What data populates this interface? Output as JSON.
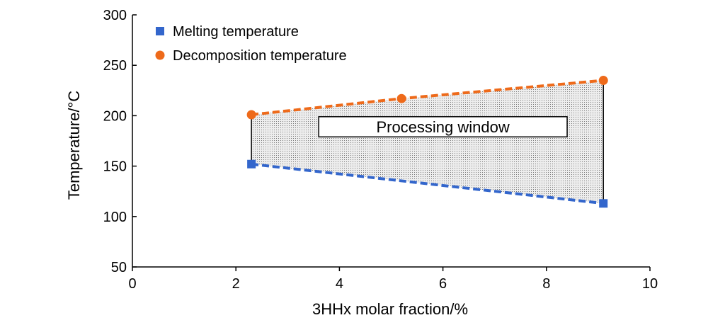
{
  "chart_data": {
    "type": "line",
    "xlabel": "3HHx molar fraction/%",
    "ylabel": "Temperature/°C",
    "xlim": [
      0,
      10
    ],
    "ylim": [
      50,
      300
    ],
    "xticks": [
      0,
      2,
      4,
      6,
      8,
      10
    ],
    "yticks": [
      50,
      100,
      150,
      200,
      250,
      300
    ],
    "grid": false,
    "legend_position": "top-left",
    "series": [
      {
        "name": "Melting temperature",
        "marker": "square",
        "line_style": "dashed",
        "color": "#3366cc",
        "x": [
          2.3,
          9.1
        ],
        "y": [
          152,
          113
        ]
      },
      {
        "name": "Decomposition temperature",
        "marker": "circle",
        "line_style": "dashed",
        "color": "#ee6a1a",
        "x": [
          2.3,
          5.2,
          9.1
        ],
        "y": [
          201,
          217,
          235
        ]
      }
    ],
    "shaded_region": {
      "pattern": "dotted",
      "fill_color": "#e4e4e4"
    },
    "annotation": {
      "text": "Processing window",
      "x": [
        3.6,
        8.4
      ],
      "y": [
        179,
        199
      ]
    }
  }
}
